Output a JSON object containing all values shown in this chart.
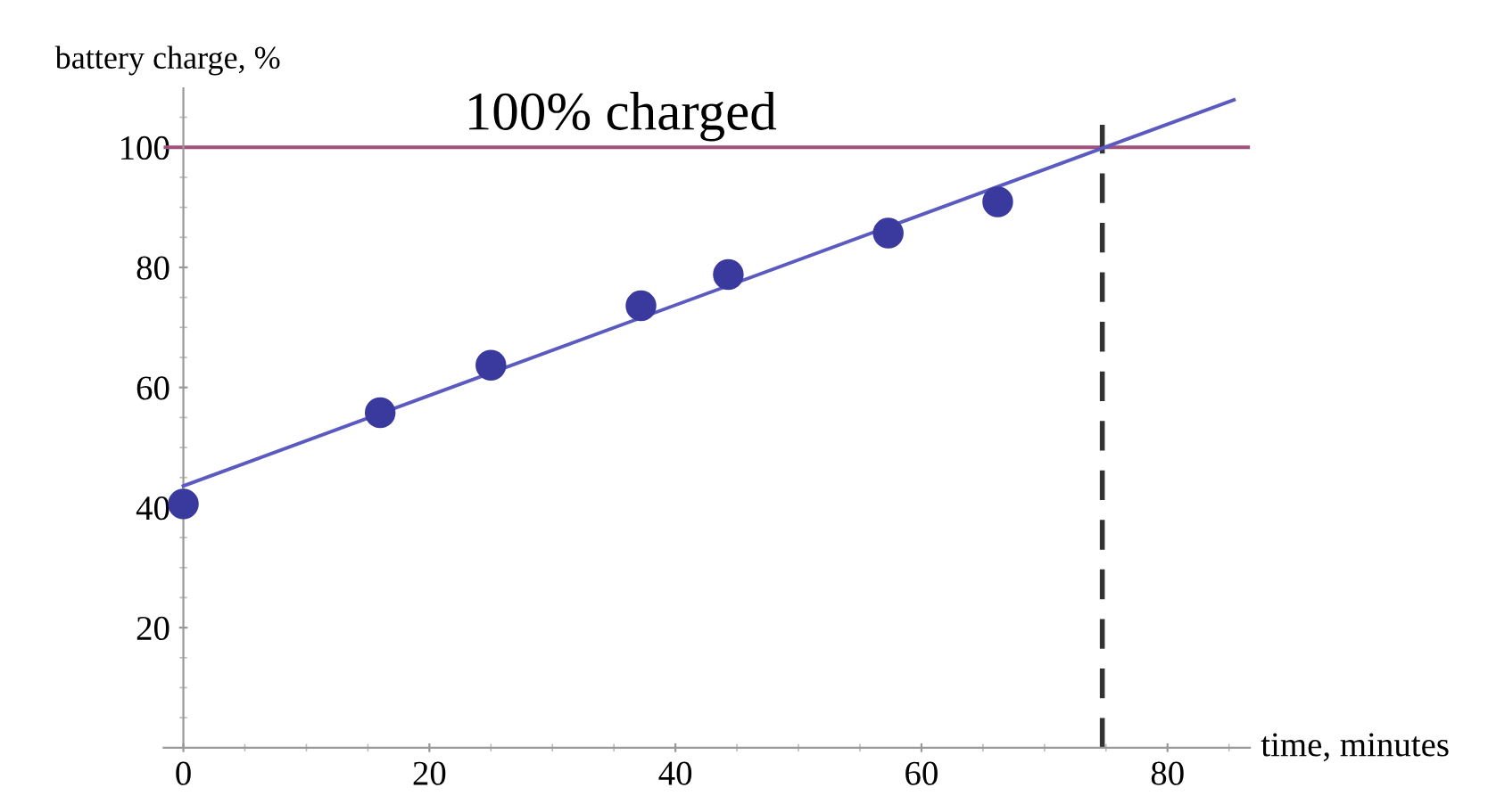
{
  "chart_data": {
    "type": "scatter",
    "xlabel": "time, minutes",
    "ylabel": "battery charge, %",
    "x": [
      0,
      16,
      25,
      37.2,
      44.3,
      57.3,
      66.2
    ],
    "series": [
      {
        "color": "#3a3a9e",
        "values": [
          40.6,
          55.8,
          63.7,
          73.6,
          78.8,
          85.7,
          90.9
        ],
        "marker": "circle"
      },
      {
        "type": "line",
        "color": "#5a5ac0",
        "x": [
          0,
          85.4
        ],
        "values": [
          43.6,
          107.9
        ],
        "marker": "none"
      }
    ],
    "ref_lines": [
      {
        "axis": "y",
        "value": 100,
        "label": "100% charged",
        "color": "#a0507a",
        "line_style": "solid"
      },
      {
        "axis": "x",
        "value": 74.7,
        "color": "#333333",
        "line_style": "dashed"
      }
    ],
    "xlim": [
      -1.6,
      86.7
    ],
    "ylim": [
      0,
      109.8
    ],
    "xticks": [
      0,
      20,
      40,
      60,
      80
    ],
    "yticks": [
      20,
      40,
      60,
      80,
      100
    ],
    "grid": false,
    "legend": false
  }
}
